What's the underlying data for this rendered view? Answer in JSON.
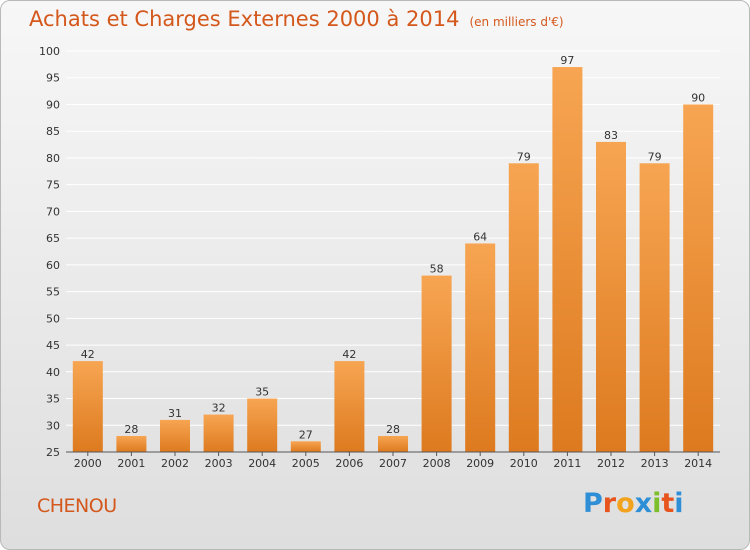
{
  "header": {
    "title": "Achats et Charges Externes 2000 à 2014",
    "subtitle": "(en milliers d'€)"
  },
  "footer": {
    "commune": "CHENOU",
    "brand": "Proxiti",
    "brand_letters": [
      {
        "ch": "P",
        "color": "#2f8fd6"
      },
      {
        "ch": "r",
        "color": "#e8541e"
      },
      {
        "ch": "o",
        "color": "#f2a21b"
      },
      {
        "ch": "x",
        "color": "#2f8fd6"
      },
      {
        "ch": "i",
        "color": "#7cbf2a"
      },
      {
        "ch": "t",
        "color": "#e8541e"
      },
      {
        "ch": "i",
        "color": "#2f8fd6"
      }
    ]
  },
  "colors": {
    "bar_light": "#f7a552",
    "bar_dark": "#dd7a1f",
    "grid": "#ffffff",
    "axis_text": "#333333",
    "title": "#d4581c"
  },
  "chart_data": {
    "type": "bar",
    "categories": [
      "2000",
      "2001",
      "2002",
      "2003",
      "2004",
      "2005",
      "2006",
      "2007",
      "2008",
      "2009",
      "2010",
      "2011",
      "2012",
      "2013",
      "2014"
    ],
    "values": [
      42,
      28,
      31,
      32,
      35,
      27,
      42,
      28,
      58,
      64,
      79,
      97,
      83,
      79,
      90
    ],
    "title": "Achats et Charges Externes 2000 à 2014",
    "subtitle": "(en milliers d'€)",
    "xlabel": "",
    "ylabel": "",
    "ylim": [
      25,
      100
    ],
    "yticks": [
      25,
      30,
      35,
      40,
      45,
      50,
      55,
      60,
      65,
      70,
      75,
      80,
      85,
      90,
      95,
      100
    ],
    "grid": true,
    "data_labels": true
  }
}
